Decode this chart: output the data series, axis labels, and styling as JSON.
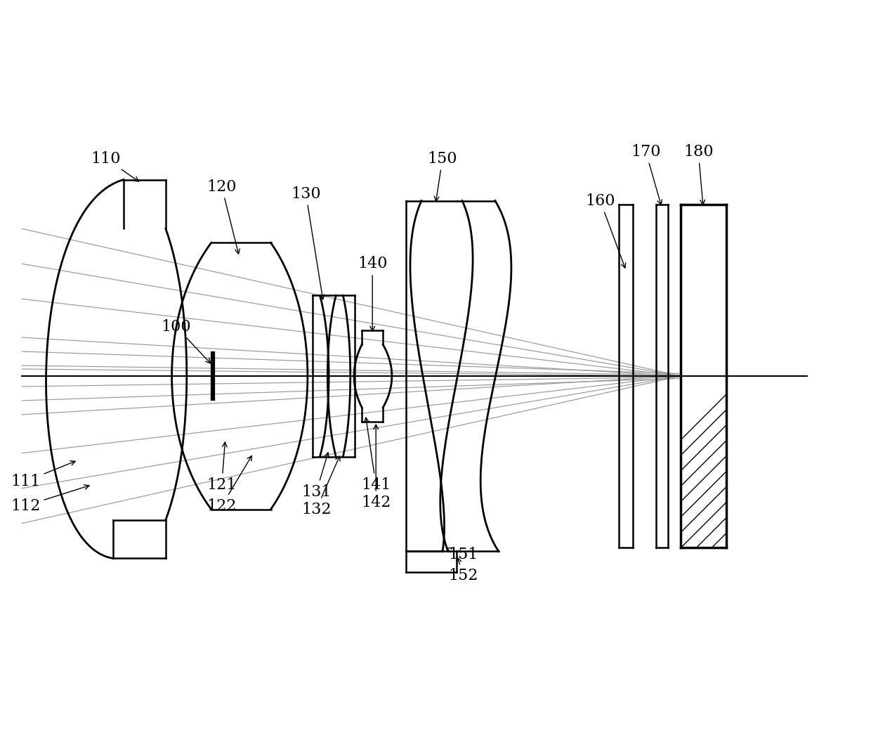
{
  "bg_color": "#ffffff",
  "lc": "#000000",
  "rc": "#999999",
  "fig_w": 12.4,
  "fig_h": 10.4,
  "xlim": [
    0,
    12.4
  ],
  "ylim": [
    -3.5,
    3.8
  ]
}
